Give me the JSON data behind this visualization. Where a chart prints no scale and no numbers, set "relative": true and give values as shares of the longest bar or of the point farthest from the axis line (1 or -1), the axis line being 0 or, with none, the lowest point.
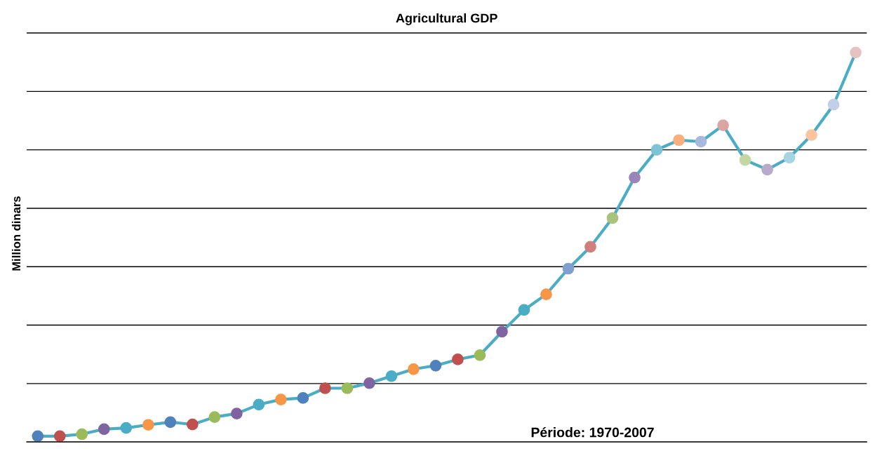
{
  "chart_data": {
    "type": "line",
    "title": "Agricultural GDP",
    "ylabel": "Million dinars",
    "annotations": [
      "Période: 1970-2007"
    ],
    "relative": true,
    "grid": "y",
    "marker": "circle",
    "line_style": "solid",
    "categories": [
      null,
      null,
      null,
      null,
      null,
      null,
      null,
      null,
      null,
      null,
      null,
      null,
      null,
      null,
      null,
      null,
      null,
      null,
      null,
      null,
      null,
      null,
      null,
      null,
      null,
      null,
      null,
      null,
      null,
      null,
      null,
      null,
      null,
      null,
      null,
      null,
      null,
      null
    ],
    "series": [
      {
        "color": "#4bacc6",
        "colors": [
          "#4f81bd",
          "#c0504d",
          "#9bbb59",
          "#8064a2",
          "#4bacc6",
          "#f79646",
          "#4f81bd",
          "#c0504d",
          "#9bbb59",
          "#8064a2",
          "#4bacc6",
          "#f79646",
          "#4f81bd",
          "#c0504d",
          "#9bbb59",
          "#8064a2",
          "#4bacc6",
          "#f79646",
          "#4f81bd",
          "#c0504d",
          "#9bbb59",
          "#8064a2",
          "#4bacc6",
          "#f79646",
          "#7f9fd0",
          "#d07f7d",
          "#a8c47a",
          "#9a85b8",
          "#7fc3d6",
          "#f9ae7c",
          "#a7b9dd",
          "#dba5a3",
          "#c4d7a3",
          "#b7aacb",
          "#a6d5e2",
          "#fbc49f",
          "#c3cfe8",
          "#e6c2c1"
        ],
        "values": [
          0.015,
          0.015,
          0.02,
          0.033,
          0.036,
          0.044,
          0.051,
          0.045,
          0.064,
          0.073,
          0.096,
          0.109,
          0.113,
          0.138,
          0.138,
          0.151,
          0.169,
          0.187,
          0.196,
          0.212,
          0.223,
          0.283,
          0.339,
          0.379,
          0.445,
          0.501,
          0.575,
          0.679,
          0.75,
          0.775,
          0.771,
          0.813,
          0.724,
          0.699,
          0.73,
          0.788,
          0.866,
          1.0
        ]
      }
    ]
  }
}
